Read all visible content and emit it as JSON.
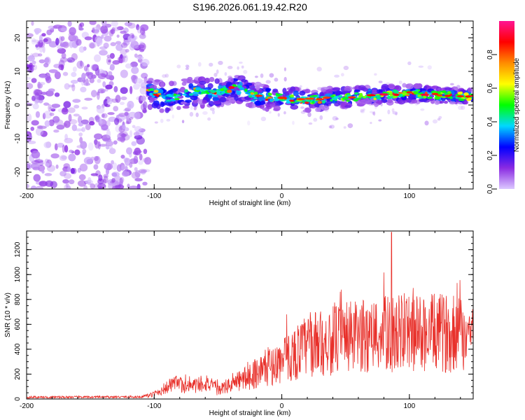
{
  "title": "S196.2026.061.19.42.R20",
  "chart_data": [
    {
      "type": "heatmap",
      "name": "spectrogram",
      "xlabel": "Height of straight line (km)",
      "ylabel": "Frequency (Hz)",
      "xlim": [
        -200,
        150
      ],
      "ylim": [
        -25,
        25
      ],
      "xticks": [
        -200,
        -100,
        0,
        100
      ],
      "yticks": [
        -20,
        -10,
        0,
        10,
        20
      ],
      "noise_region_x": [
        -200,
        -105
      ],
      "signal_region_x": [
        -105,
        150
      ],
      "ridge": [
        {
          "x": -105,
          "f": 4.0
        },
        {
          "x": -90,
          "f": 2.0
        },
        {
          "x": -70,
          "f": 4.0
        },
        {
          "x": -50,
          "f": 3.5
        },
        {
          "x": -35,
          "f": 5.0
        },
        {
          "x": -20,
          "f": 2.5
        },
        {
          "x": 0,
          "f": 2.0
        },
        {
          "x": 20,
          "f": 1.5
        },
        {
          "x": 40,
          "f": 2.0
        },
        {
          "x": 60,
          "f": 2.5
        },
        {
          "x": 80,
          "f": 3.0
        },
        {
          "x": 100,
          "f": 3.5
        },
        {
          "x": 120,
          "f": 3.0
        },
        {
          "x": 150,
          "f": 2.5
        }
      ],
      "colorbar": {
        "label": "Normalized spectral amplitude",
        "range": [
          0,
          1
        ],
        "ticks": [
          "0.0",
          "0.2",
          "0.4",
          "0.6",
          "0.8"
        ],
        "colors": [
          "#dcc8ff",
          "#8a2be2",
          "#0000ff",
          "#00d8ff",
          "#00ff00",
          "#ffff00",
          "#ff8c00",
          "#ff0000",
          "#ff1493"
        ]
      }
    },
    {
      "type": "line",
      "name": "snr",
      "xlabel": "Height of straight line (km)",
      "ylabel": "SNR (10 * v/v)",
      "xlim": [
        -200,
        150
      ],
      "ylim": [
        0,
        1350
      ],
      "xticks": [
        -200,
        -100,
        0,
        100
      ],
      "yticks": [
        0,
        200,
        400,
        600,
        800,
        1000,
        1200
      ],
      "line_color": "#e8302a",
      "envelope": [
        {
          "x": -200,
          "y": 5
        },
        {
          "x": -110,
          "y": 8
        },
        {
          "x": -100,
          "y": 40
        },
        {
          "x": -85,
          "y": 120
        },
        {
          "x": -70,
          "y": 100
        },
        {
          "x": -60,
          "y": 140
        },
        {
          "x": -50,
          "y": 70
        },
        {
          "x": -30,
          "y": 160
        },
        {
          "x": -15,
          "y": 240
        },
        {
          "x": 0,
          "y": 300
        },
        {
          "x": 20,
          "y": 430
        },
        {
          "x": 50,
          "y": 490
        },
        {
          "x": 80,
          "y": 520
        },
        {
          "x": 100,
          "y": 530
        },
        {
          "x": 150,
          "y": 530
        }
      ],
      "peaks": [
        {
          "x": 86,
          "y": 1340
        },
        {
          "x": 96,
          "y": 850
        }
      ]
    }
  ]
}
